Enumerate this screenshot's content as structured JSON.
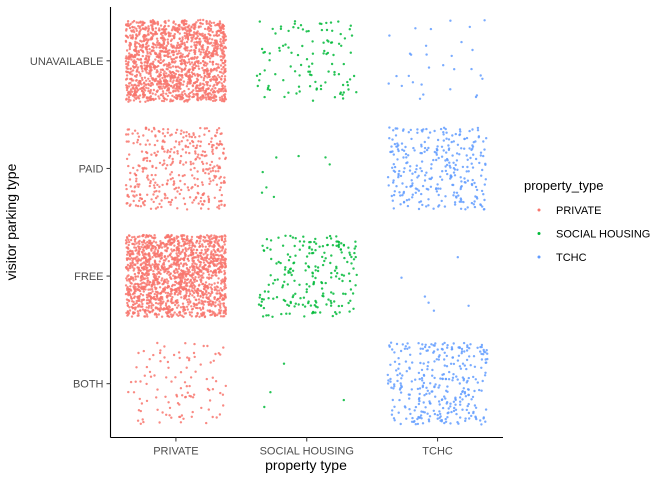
{
  "chart_data": {
    "type": "scatter",
    "subtype": "jitter",
    "xlabel": "property type",
    "ylabel": "visitor parking type",
    "x_categories": [
      "PRIVATE",
      "SOCIAL HOUSING",
      "TCHC"
    ],
    "y_categories": [
      "BOTH",
      "FREE",
      "PAID",
      "UNAVAILABLE"
    ],
    "grid": false,
    "legend": {
      "title": "property_type",
      "position": "right",
      "entries": [
        {
          "label": "PRIVATE",
          "color": "#F8766D"
        },
        {
          "label": "SOCIAL HOUSING",
          "color": "#00BA38"
        },
        {
          "label": "TCHC",
          "color": "#619CFF"
        }
      ]
    },
    "series": [
      {
        "name": "PRIVATE",
        "color": "#F8766D",
        "counts": {
          "BOTH": 110,
          "FREE": 1600,
          "PAID": 380,
          "UNAVAILABLE": 1500
        }
      },
      {
        "name": "SOCIAL HOUSING",
        "color": "#00BA38",
        "counts": {
          "BOTH": 4,
          "FREE": 220,
          "PAID": 8,
          "UNAVAILABLE": 110
        }
      },
      {
        "name": "TCHC",
        "color": "#619CFF",
        "counts": {
          "BOTH": 330,
          "FREE": 6,
          "PAID": 300,
          "UNAVAILABLE": 30
        }
      }
    ]
  }
}
